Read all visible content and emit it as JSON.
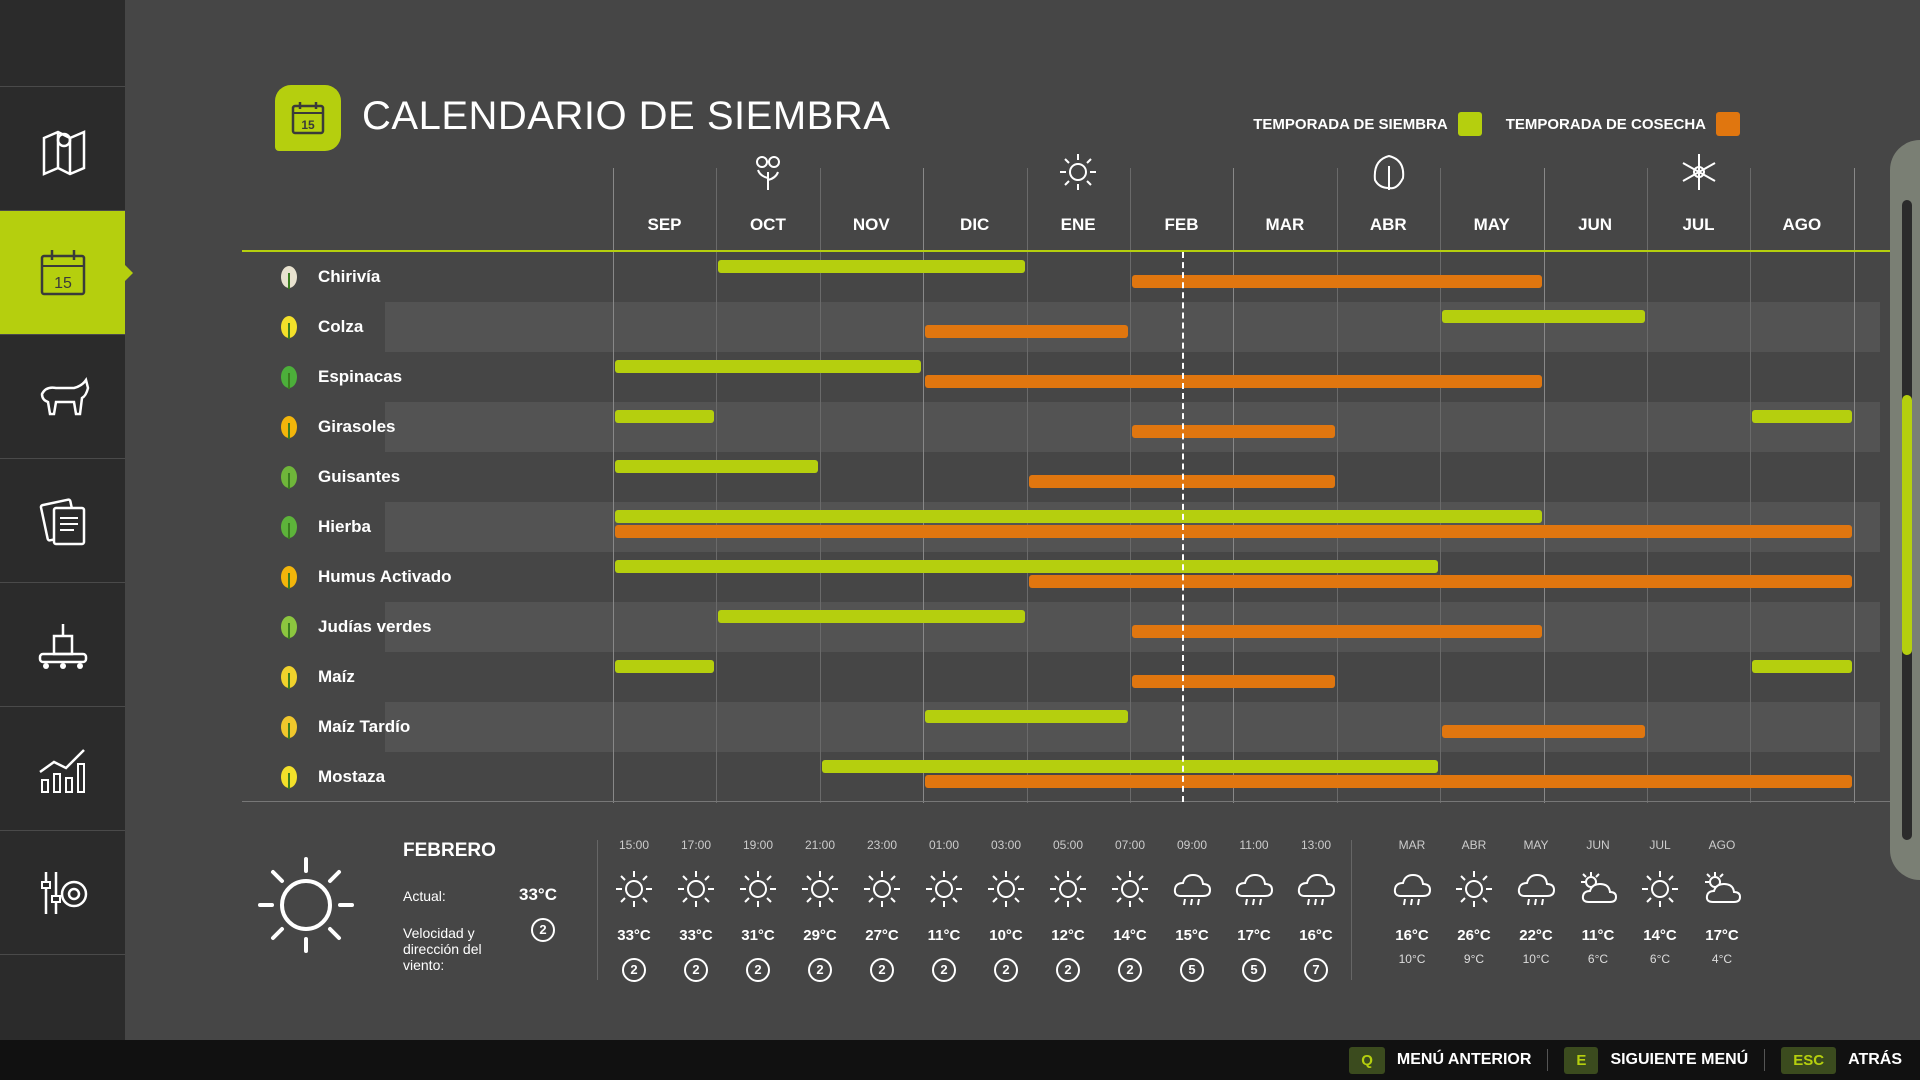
{
  "title": "CALENDARIO DE SIEMBRA",
  "title_icon_day": "15",
  "legend": {
    "sowing": "TEMPORADA DE SIEMBRA",
    "harvest": "TEMPORADA DE COSECHA"
  },
  "colors": {
    "sowing": "#b5cf0e",
    "harvest": "#e0760f",
    "accent": "#b5cf0e"
  },
  "months": [
    "SEP",
    "OCT",
    "NOV",
    "DIC",
    "ENE",
    "FEB",
    "MAR",
    "ABR",
    "MAY",
    "JUN",
    "JUL",
    "AGO"
  ],
  "seasons": [
    {
      "icon": "flower-spring-icon",
      "month_index": 1
    },
    {
      "icon": "sun-summer-icon",
      "month_index": 4
    },
    {
      "icon": "leaf-autumn-icon",
      "month_index": 7
    },
    {
      "icon": "snowflake-winter-icon",
      "month_index": 10
    }
  ],
  "current_month_index": 5.5,
  "crops": [
    {
      "name": "Chirivía",
      "icon": "parsnip-icon",
      "sow": [
        [
          1,
          4
        ]
      ],
      "harvest": [
        [
          5,
          9
        ]
      ]
    },
    {
      "name": "Colza",
      "icon": "canola-icon",
      "sow": [
        [
          8,
          10
        ]
      ],
      "harvest": [
        [
          3,
          5
        ]
      ]
    },
    {
      "name": "Espinacas",
      "icon": "spinach-icon",
      "sow": [
        [
          0,
          3
        ]
      ],
      "harvest": [
        [
          3,
          9
        ]
      ]
    },
    {
      "name": "Girasoles",
      "icon": "sunflower-icon",
      "sow": [
        [
          0,
          1
        ],
        [
          11,
          12
        ]
      ],
      "harvest": [
        [
          5,
          7
        ]
      ]
    },
    {
      "name": "Guisantes",
      "icon": "peas-icon",
      "sow": [
        [
          0,
          2
        ]
      ],
      "harvest": [
        [
          4,
          7
        ]
      ]
    },
    {
      "name": "Hierba",
      "icon": "grass-icon",
      "sow": [
        [
          0,
          9
        ]
      ],
      "harvest": [
        [
          0,
          12
        ]
      ]
    },
    {
      "name": "Humus Activado",
      "icon": "humus-icon",
      "sow": [
        [
          0,
          8
        ]
      ],
      "harvest": [
        [
          4,
          12
        ]
      ]
    },
    {
      "name": "Judías verdes",
      "icon": "green-beans-icon",
      "sow": [
        [
          1,
          4
        ]
      ],
      "harvest": [
        [
          5,
          9
        ]
      ]
    },
    {
      "name": "Maíz",
      "icon": "corn-icon",
      "sow": [
        [
          0,
          1
        ],
        [
          11,
          12
        ]
      ],
      "harvest": [
        [
          5,
          7
        ]
      ]
    },
    {
      "name": "Maíz Tardío",
      "icon": "late-corn-icon",
      "sow": [
        [
          3,
          5
        ]
      ],
      "harvest": [
        [
          8,
          10
        ]
      ]
    },
    {
      "name": "Mostaza",
      "icon": "mustard-icon",
      "sow": [
        [
          2,
          8
        ]
      ],
      "harvest": [
        [
          3,
          12
        ]
      ]
    }
  ],
  "weather": {
    "month": "FEBRERO",
    "actual_label": "Actual:",
    "actual_value": "33°C",
    "wind_label": "Velocidad y dirección del viento:",
    "wind_value": "2",
    "hourly": [
      {
        "time": "15:00",
        "icon": "sun",
        "temp": "33°C",
        "wind": "2"
      },
      {
        "time": "17:00",
        "icon": "sun",
        "temp": "33°C",
        "wind": "2"
      },
      {
        "time": "19:00",
        "icon": "sun",
        "temp": "31°C",
        "wind": "2"
      },
      {
        "time": "21:00",
        "icon": "sun",
        "temp": "29°C",
        "wind": "2"
      },
      {
        "time": "23:00",
        "icon": "sun",
        "temp": "27°C",
        "wind": "2"
      },
      {
        "time": "01:00",
        "icon": "sun",
        "temp": "11°C",
        "wind": "2"
      },
      {
        "time": "03:00",
        "icon": "sun",
        "temp": "10°C",
        "wind": "2"
      },
      {
        "time": "05:00",
        "icon": "sun",
        "temp": "12°C",
        "wind": "2"
      },
      {
        "time": "07:00",
        "icon": "sun",
        "temp": "14°C",
        "wind": "2"
      },
      {
        "time": "09:00",
        "icon": "rain",
        "temp": "15°C",
        "wind": "5"
      },
      {
        "time": "11:00",
        "icon": "rain",
        "temp": "17°C",
        "wind": "5"
      },
      {
        "time": "13:00",
        "icon": "rain",
        "temp": "16°C",
        "wind": "7"
      }
    ],
    "monthly": [
      {
        "month": "MAR",
        "icon": "rain",
        "hi": "16°C",
        "lo": "10°C"
      },
      {
        "month": "ABR",
        "icon": "sun",
        "hi": "26°C",
        "lo": "9°C"
      },
      {
        "month": "MAY",
        "icon": "rain",
        "hi": "22°C",
        "lo": "10°C"
      },
      {
        "month": "JUN",
        "icon": "partly",
        "hi": "11°C",
        "lo": "6°C"
      },
      {
        "month": "JUL",
        "icon": "sun",
        "hi": "14°C",
        "lo": "6°C"
      },
      {
        "month": "AGO",
        "icon": "partly",
        "hi": "17°C",
        "lo": "4°C"
      }
    ]
  },
  "bottom_bar": {
    "prev_key": "Q",
    "prev_label": "MENÚ ANTERIOR",
    "next_key": "E",
    "next_label": "SIGUIENTE MENÚ",
    "back_key": "ESC",
    "back_label": "ATRÁS"
  },
  "sidebar": [
    {
      "icon": "map-icon"
    },
    {
      "icon": "calendar-icon",
      "active": true
    },
    {
      "icon": "cow-icon"
    },
    {
      "icon": "contracts-icon"
    },
    {
      "icon": "production-icon"
    },
    {
      "icon": "statistics-icon"
    },
    {
      "icon": "settings-icon"
    }
  ]
}
